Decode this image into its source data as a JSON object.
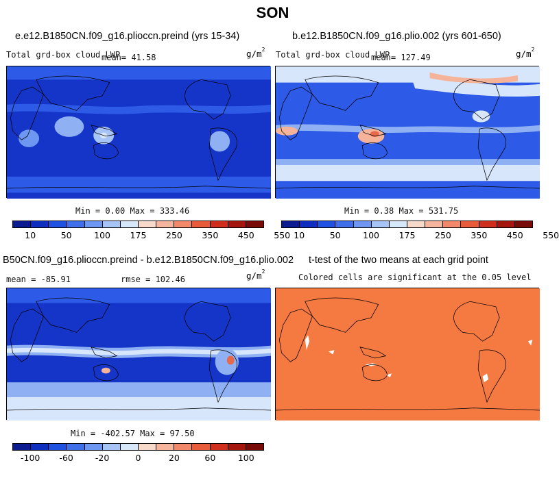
{
  "figure": {
    "season": "SON"
  },
  "panels": {
    "top_left": {
      "title": "e.e12.B1850CN.f09_g16.plioccn.preind (yrs 15-34)",
      "subtitle": "Total grd-box cloud LWP",
      "mean_text": "mean=  41.58",
      "units": "g/m",
      "units_exp": "2",
      "minmax_text": "Min =   0.00 Max = 333.46"
    },
    "top_right": {
      "title": "b.e12.B1850CN.f09_g16.plio.002 (yrs 601-650)",
      "subtitle": "Total grd-box cloud LWP",
      "mean_text": "mean= 127.49",
      "units": "g/m",
      "units_exp": "2",
      "minmax_text": "Min =   0.38 Max = 531.75"
    },
    "bottom_left": {
      "title": "B50CN.f09_g16.plioccn.preind - b.e12.B1850CN.f09_g16.plio.002",
      "mean_text": "mean = -85.91",
      "rmse_text": "rmse = 102.46",
      "units": "g/m",
      "units_exp": "2",
      "minmax_text": "Min = -402.57 Max =  97.50"
    },
    "bottom_right": {
      "title": "t-test of the two means at each grid point",
      "subtitle": "Colored cells are significant at the 0.05 level"
    }
  },
  "colorbars": {
    "abs_colors": [
      "#0a1c8f",
      "#0f2fc0",
      "#1f52e0",
      "#3f70ea",
      "#6e97f1",
      "#a7c4f7",
      "#d8e8fb",
      "#f8dacb",
      "#f6b69d",
      "#f2886a",
      "#e85c3c",
      "#d12f1d",
      "#a5160e",
      "#780b08"
    ],
    "abs_ticks": [
      "10",
      "50",
      "100",
      "175",
      "250",
      "350",
      "450",
      "550"
    ],
    "diff_colors": [
      "#0a1c8f",
      "#0f2fc0",
      "#1f52e0",
      "#3f70ea",
      "#6e97f1",
      "#a7c4f7",
      "#d8e8fb",
      "#f8dacb",
      "#f6b69d",
      "#f2886a",
      "#e85c3c",
      "#d12f1d",
      "#a5160e",
      "#780b08"
    ],
    "diff_ticks": [
      "-100",
      "-60",
      "-20",
      "0",
      "20",
      "60",
      "100"
    ]
  },
  "map_colors": {
    "deep": "#1535c8",
    "mid": "#2d5ae6",
    "light": "#8fb1f3",
    "pale": "#d8e6fb",
    "white": "#ffffff",
    "salmon": "#f5b39a",
    "red": "#e8684a",
    "ttest": "#f57a42",
    "coast": "#000000"
  }
}
